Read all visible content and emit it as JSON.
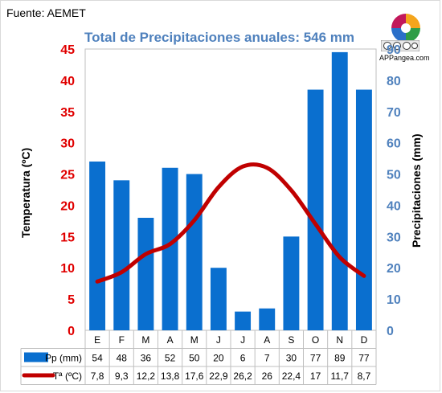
{
  "header": {
    "source": "Fuente: AEMET",
    "title": "Total de Precipitaciones anuales: 546 mm",
    "brand": "APPangea.com"
  },
  "colors": {
    "bars": "#0a6fcf",
    "line": "#c00000",
    "left_axis": "#e00000",
    "right_axis": "#4f81bd"
  },
  "chart_data": {
    "type": "bar",
    "combo": "bar+line",
    "categories": [
      "E",
      "F",
      "M",
      "A",
      "M",
      "J",
      "J",
      "A",
      "S",
      "O",
      "N",
      "D"
    ],
    "series": [
      {
        "name": "Pp (mm)",
        "type": "bar",
        "axis": "right",
        "values": [
          54,
          48,
          36,
          52,
          50,
          20,
          6,
          7,
          30,
          77,
          89,
          77
        ],
        "labels": [
          "54",
          "48",
          "36",
          "52",
          "50",
          "20",
          "6",
          "7",
          "30",
          "77",
          "89",
          "77"
        ]
      },
      {
        "name": "Tª (ºC)",
        "type": "line",
        "axis": "left",
        "values": [
          7.8,
          9.3,
          12.2,
          13.8,
          17.6,
          22.9,
          26.2,
          26,
          22.4,
          17,
          11.7,
          8.7
        ],
        "labels": [
          "7,8",
          "9,3",
          "12,2",
          "13,8",
          "17,6",
          "22,9",
          "26,2",
          "26",
          "22,4",
          "17",
          "11,7",
          "8,7"
        ]
      }
    ],
    "y_left": {
      "label": "Temperatura (ºC)",
      "ylim": [
        0,
        45
      ],
      "ticks": [
        "0",
        "5",
        "10",
        "15",
        "20",
        "25",
        "30",
        "35",
        "40",
        "45"
      ]
    },
    "y_right": {
      "label": "Precipitaciones (mm)",
      "ylim": [
        0,
        90
      ],
      "ticks": [
        "0",
        "10",
        "20",
        "30",
        "40",
        "50",
        "60",
        "70",
        "80",
        "90"
      ]
    },
    "grid": false,
    "legend": "data-table-below"
  }
}
